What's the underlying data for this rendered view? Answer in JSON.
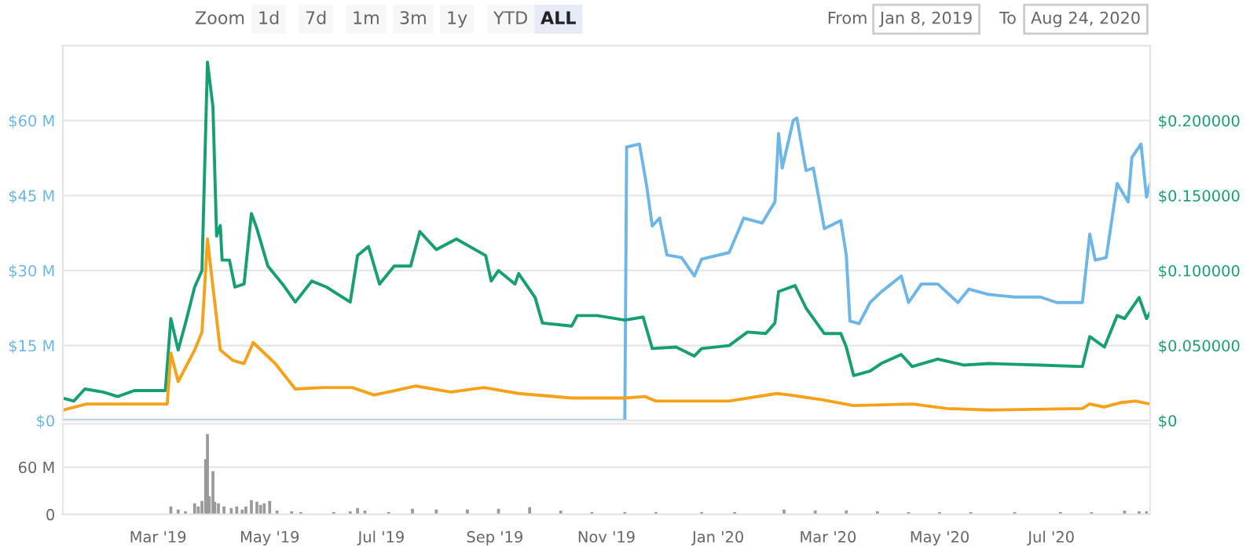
{
  "chart_data": [
    {
      "type": "line",
      "tick_labels": "y",
      "grid": "y",
      "xlim": [
        "2019-01-08",
        "2020-08-24"
      ],
      "ylim": [
        0,
        75
      ],
      "yticks": [
        {
          "value": 0,
          "label": "$0"
        },
        {
          "value": 15,
          "label": "$15 M"
        },
        {
          "value": 30,
          "label": "$30 M"
        },
        {
          "value": 45,
          "label": "$45 M"
        },
        {
          "value": 60,
          "label": "$60 M"
        }
      ],
      "y2lim": [
        0,
        0.25
      ],
      "y2ticks": [
        {
          "value": 0,
          "label": "$0"
        },
        {
          "value": 0.05,
          "label": "$0.050000"
        },
        {
          "value": 0.1,
          "label": "$0.100000"
        },
        {
          "value": 0.15,
          "label": "$0.150000"
        },
        {
          "value": 0.2,
          "label": "$0.200000"
        }
      ],
      "annotations": [
        "Zoom",
        "1d",
        "7d",
        "1m",
        "3m",
        "1y",
        "YTD",
        "ALL",
        "From",
        "Jan 8, 2019",
        "To",
        "Aug 24, 2020"
      ],
      "series": [
        {
          "color": "#6cb7e8",
          "x": [
            "2019-01-08",
            "2019-11-11",
            "2019-11-12",
            "2019-11-19",
            "2019-11-23",
            "2019-11-26",
            "2019-11-30",
            "2019-12-04",
            "2019-12-12",
            "2019-12-19",
            "2019-12-23",
            "2020-01-07",
            "2020-01-15",
            "2020-01-25",
            "2020-02-01",
            "2020-02-03",
            "2020-02-05",
            "2020-02-11",
            "2020-02-13",
            "2020-02-18",
            "2020-02-22",
            "2020-02-28",
            "2020-03-08",
            "2020-03-11",
            "2020-03-13",
            "2020-03-18",
            "2020-03-24",
            "2020-03-30",
            "2020-04-10",
            "2020-04-14",
            "2020-04-21",
            "2020-04-30",
            "2020-05-11",
            "2020-05-17",
            "2020-05-28",
            "2020-06-11",
            "2020-06-25",
            "2020-07-04",
            "2020-07-18",
            "2020-07-22",
            "2020-07-25",
            "2020-07-31",
            "2020-08-06",
            "2020-08-12",
            "2020-08-14",
            "2020-08-19",
            "2020-08-22",
            "2020-08-24"
          ],
          "values": [
            0,
            0,
            54.7,
            55.3,
            46.8,
            38.9,
            40.5,
            33.1,
            32.6,
            28.9,
            32.3,
            33.6,
            40.5,
            39.5,
            43.7,
            57.4,
            50.5,
            60.0,
            60.5,
            50.0,
            50.5,
            38.4,
            40.0,
            33.1,
            19.9,
            19.4,
            23.6,
            25.7,
            28.9,
            23.6,
            27.3,
            27.3,
            23.6,
            26.3,
            25.2,
            24.7,
            24.7,
            23.6,
            23.6,
            37.3,
            32.1,
            32.6,
            47.4,
            43.7,
            52.6,
            55.3,
            44.7,
            47.4
          ]
        },
        {
          "color": "#16a071",
          "axis": "y2",
          "x": [
            "2019-01-08",
            "2019-01-14",
            "2019-01-20",
            "2019-01-30",
            "2019-02-07",
            "2019-02-16",
            "2019-03-05",
            "2019-03-08",
            "2019-03-12",
            "2019-03-16",
            "2019-03-21",
            "2019-03-25",
            "2019-03-28",
            "2019-03-31",
            "2019-04-02",
            "2019-04-04",
            "2019-04-05",
            "2019-04-09",
            "2019-04-12",
            "2019-04-17",
            "2019-04-21",
            "2019-04-24",
            "2019-04-30",
            "2019-05-08",
            "2019-05-15",
            "2019-05-24",
            "2019-06-01",
            "2019-06-14",
            "2019-06-18",
            "2019-06-24",
            "2019-06-30",
            "2019-07-08",
            "2019-07-17",
            "2019-07-22",
            "2019-07-31",
            "2019-08-11",
            "2019-08-27",
            "2019-08-30",
            "2019-09-03",
            "2019-09-12",
            "2019-09-14",
            "2019-09-23",
            "2019-09-27",
            "2019-10-13",
            "2019-10-16",
            "2019-10-27",
            "2019-11-11",
            "2019-11-21",
            "2019-11-26",
            "2019-12-09",
            "2019-12-19",
            "2019-12-23",
            "2020-01-07",
            "2020-01-17",
            "2020-01-27",
            "2020-02-01",
            "2020-02-03",
            "2020-02-12",
            "2020-02-18",
            "2020-02-28",
            "2020-03-08",
            "2020-03-11",
            "2020-03-15",
            "2020-03-24",
            "2020-03-30",
            "2020-04-10",
            "2020-04-16",
            "2020-04-30",
            "2020-05-14",
            "2020-05-28",
            "2020-06-25",
            "2020-07-18",
            "2020-07-22",
            "2020-07-30",
            "2020-08-06",
            "2020-08-10",
            "2020-08-18",
            "2020-08-22",
            "2020-08-24"
          ],
          "values": [
            0.015,
            0.013,
            0.021,
            0.019,
            0.016,
            0.02,
            0.02,
            0.068,
            0.047,
            0.065,
            0.089,
            0.1,
            0.239,
            0.209,
            0.123,
            0.13,
            0.107,
            0.107,
            0.089,
            0.091,
            0.138,
            0.128,
            0.103,
            0.091,
            0.079,
            0.093,
            0.089,
            0.079,
            0.11,
            0.116,
            0.091,
            0.103,
            0.103,
            0.126,
            0.114,
            0.121,
            0.11,
            0.093,
            0.1,
            0.091,
            0.098,
            0.082,
            0.065,
            0.063,
            0.07,
            0.07,
            0.067,
            0.069,
            0.048,
            0.049,
            0.043,
            0.048,
            0.05,
            0.059,
            0.058,
            0.065,
            0.086,
            0.09,
            0.075,
            0.058,
            0.058,
            0.049,
            0.03,
            0.033,
            0.038,
            0.044,
            0.036,
            0.041,
            0.037,
            0.038,
            0.037,
            0.036,
            0.056,
            0.049,
            0.07,
            0.068,
            0.082,
            0.068,
            0.072
          ]
        },
        {
          "color": "#f7a11a",
          "axis": "y2",
          "x": [
            "2019-01-08",
            "2019-01-21",
            "2019-02-16",
            "2019-03-06",
            "2019-03-08",
            "2019-03-12",
            "2019-03-21",
            "2019-03-25",
            "2019-03-28",
            "2019-03-31",
            "2019-04-04",
            "2019-04-11",
            "2019-04-17",
            "2019-04-22",
            "2019-05-04",
            "2019-05-15",
            "2019-05-30",
            "2019-06-15",
            "2019-06-27",
            "2019-07-20",
            "2019-08-08",
            "2019-08-26",
            "2019-09-14",
            "2019-10-13",
            "2019-11-11",
            "2019-11-22",
            "2019-11-28",
            "2020-01-07",
            "2020-02-02",
            "2020-02-09",
            "2020-02-26",
            "2020-03-15",
            "2020-04-16",
            "2020-05-05",
            "2020-05-28",
            "2020-07-18",
            "2020-07-22",
            "2020-07-30",
            "2020-08-08",
            "2020-08-16",
            "2020-08-24"
          ],
          "values": [
            0.007,
            0.011,
            0.011,
            0.011,
            0.045,
            0.026,
            0.047,
            0.059,
            0.121,
            0.089,
            0.047,
            0.04,
            0.038,
            0.052,
            0.038,
            0.021,
            0.022,
            0.022,
            0.017,
            0.023,
            0.019,
            0.022,
            0.018,
            0.015,
            0.015,
            0.016,
            0.013,
            0.013,
            0.018,
            0.017,
            0.014,
            0.01,
            0.011,
            0.008,
            0.007,
            0.008,
            0.011,
            0.009,
            0.012,
            0.013,
            0.011
          ]
        }
      ]
    },
    {
      "type": "bar",
      "color": "#9a9a9a",
      "grid": "y",
      "xlim": [
        "2019-01-08",
        "2020-08-24"
      ],
      "xticks": [
        {
          "value": "2019-03-01",
          "label": "Mar '19"
        },
        {
          "value": "2019-05-01",
          "label": "May '19"
        },
        {
          "value": "2019-07-01",
          "label": "Jul '19"
        },
        {
          "value": "2019-09-01",
          "label": "Sep '19"
        },
        {
          "value": "2019-11-01",
          "label": "Nov '19"
        },
        {
          "value": "2020-01-01",
          "label": "Jan '20"
        },
        {
          "value": "2020-03-01",
          "label": "Mar '20"
        },
        {
          "value": "2020-05-01",
          "label": "May '20"
        },
        {
          "value": "2020-07-01",
          "label": "Jul '20"
        }
      ],
      "ylim": [
        0,
        115
      ],
      "yticks": [
        {
          "value": 0,
          "label": "0"
        },
        {
          "value": 60,
          "label": "60 M"
        }
      ],
      "x": [
        "2019-03-08",
        "2019-03-12",
        "2019-03-16",
        "2019-03-21",
        "2019-03-23",
        "2019-03-25",
        "2019-03-27",
        "2019-03-28",
        "2019-03-29",
        "2019-03-31",
        "2019-04-01",
        "2019-04-03",
        "2019-04-06",
        "2019-04-10",
        "2019-04-13",
        "2019-04-16",
        "2019-04-18",
        "2019-04-21",
        "2019-04-24",
        "2019-04-26",
        "2019-04-28",
        "2019-05-01",
        "2019-05-05",
        "2019-05-13",
        "2019-05-18",
        "2019-06-05",
        "2019-06-14",
        "2019-06-18",
        "2019-06-22",
        "2019-07-05",
        "2019-07-18",
        "2019-07-31",
        "2019-08-17",
        "2019-09-03",
        "2019-09-20",
        "2019-10-07",
        "2019-10-24",
        "2019-11-11",
        "2019-11-28",
        "2019-12-23",
        "2020-01-10",
        "2020-02-06",
        "2020-02-23",
        "2020-03-11",
        "2020-03-28",
        "2020-04-14",
        "2020-05-01",
        "2020-05-18",
        "2020-06-11",
        "2020-07-06",
        "2020-07-23",
        "2020-08-10",
        "2020-08-18",
        "2020-08-22"
      ],
      "values": [
        10,
        6,
        4,
        14,
        10,
        17,
        70,
        102,
        23,
        55,
        16,
        14,
        10,
        8,
        10,
        6,
        10,
        18,
        16,
        12,
        14,
        17,
        5,
        4,
        3,
        3,
        4,
        8,
        5,
        3,
        7,
        6,
        6,
        7,
        9,
        5,
        3,
        3,
        3,
        3,
        3,
        6,
        5,
        5,
        4,
        3,
        3,
        3,
        3,
        3,
        3,
        5,
        4,
        4
      ]
    }
  ]
}
